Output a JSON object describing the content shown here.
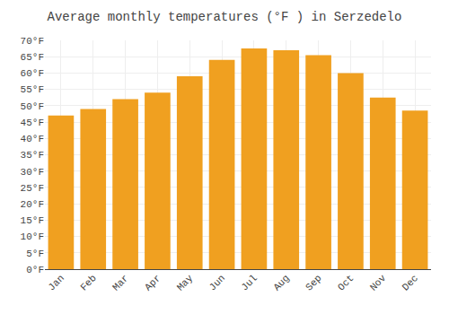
{
  "chart_data": {
    "type": "bar",
    "title": "Average monthly temperatures (°F ) in Serzedelo",
    "categories": [
      "Jan",
      "Feb",
      "Mar",
      "Apr",
      "May",
      "Jun",
      "Jul",
      "Aug",
      "Sep",
      "Oct",
      "Nov",
      "Dec"
    ],
    "values": [
      47.0,
      49.0,
      52.0,
      54.0,
      59.0,
      64.0,
      67.5,
      67.0,
      65.5,
      60.0,
      52.5,
      48.5
    ],
    "color": "#F0A020",
    "ylim": [
      0,
      70
    ],
    "yticks": [
      {
        "value": 0,
        "label": "0°F"
      },
      {
        "value": 5,
        "label": "5°F"
      },
      {
        "value": 10,
        "label": "10°F"
      },
      {
        "value": 15,
        "label": "15°F"
      },
      {
        "value": 20,
        "label": "20°F"
      },
      {
        "value": 25,
        "label": "25°F"
      },
      {
        "value": 30,
        "label": "30°F"
      },
      {
        "value": 35,
        "label": "35°F"
      },
      {
        "value": 40,
        "label": "40°F"
      },
      {
        "value": 45,
        "label": "45°F"
      },
      {
        "value": 50,
        "label": "50°F"
      },
      {
        "value": 55,
        "label": "55°F"
      },
      {
        "value": 60,
        "label": "60°F"
      },
      {
        "value": 65,
        "label": "65°F"
      },
      {
        "value": 70,
        "label": "70°F"
      }
    ],
    "grid": true
  }
}
